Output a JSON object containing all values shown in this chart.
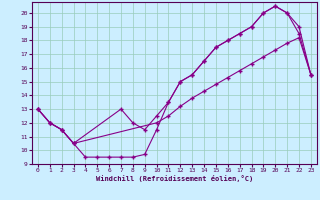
{
  "bg_color": "#cceeff",
  "line_color": "#880088",
  "grid_color": "#99ccbb",
  "xlabel": "Windchill (Refroidissement éolien,°C)",
  "xlim": [
    -0.5,
    23.5
  ],
  "ylim": [
    9,
    20.8
  ],
  "xticks": [
    0,
    1,
    2,
    3,
    4,
    5,
    6,
    7,
    8,
    9,
    10,
    11,
    12,
    13,
    14,
    15,
    16,
    17,
    18,
    19,
    20,
    21,
    22,
    23
  ],
  "yticks": [
    9,
    10,
    11,
    12,
    13,
    14,
    15,
    16,
    17,
    18,
    19,
    20
  ],
  "line1_x": [
    0,
    1,
    2,
    3,
    4,
    5,
    6,
    7,
    8,
    9,
    10,
    11,
    12,
    13,
    14,
    15,
    16,
    17,
    18,
    19,
    20,
    21,
    22,
    23
  ],
  "line1_y": [
    13.0,
    12.0,
    11.5,
    10.5,
    9.5,
    9.5,
    9.5,
    9.5,
    9.5,
    9.7,
    11.5,
    13.5,
    15.0,
    15.5,
    16.5,
    17.5,
    18.0,
    18.5,
    19.0,
    20.0,
    20.5,
    20.0,
    19.0,
    15.5
  ],
  "line2_x": [
    0,
    1,
    2,
    3,
    7,
    8,
    9,
    10,
    11,
    12,
    13,
    14,
    15,
    16,
    17,
    18,
    19,
    20,
    21,
    22,
    23
  ],
  "line2_y": [
    13.0,
    12.0,
    11.5,
    10.5,
    13.0,
    12.0,
    11.5,
    12.5,
    13.5,
    15.0,
    15.5,
    16.5,
    17.5,
    18.0,
    18.5,
    19.0,
    20.0,
    20.5,
    20.0,
    18.5,
    15.5
  ],
  "line3_x": [
    0,
    1,
    2,
    3,
    10,
    11,
    12,
    13,
    14,
    15,
    16,
    17,
    18,
    19,
    20,
    21,
    22,
    23
  ],
  "line3_y": [
    13.0,
    12.0,
    11.5,
    10.5,
    12.0,
    12.5,
    13.2,
    13.8,
    14.3,
    14.8,
    15.3,
    15.8,
    16.3,
    16.8,
    17.3,
    17.8,
    18.2,
    15.5
  ]
}
